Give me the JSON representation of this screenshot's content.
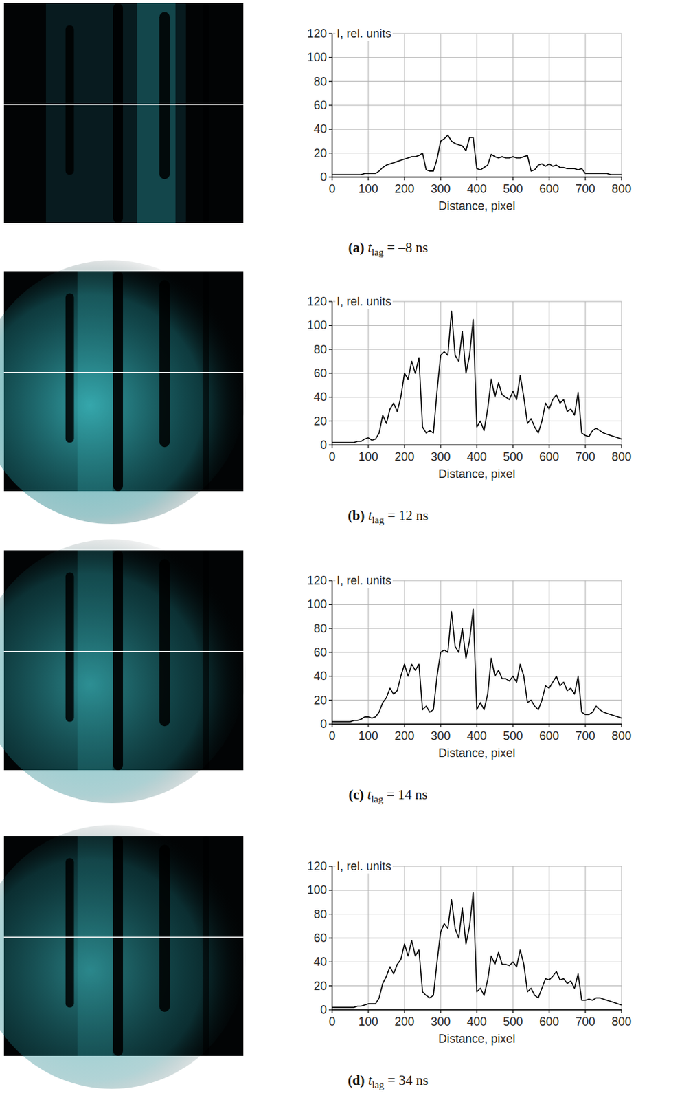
{
  "chart_data": [
    {
      "type": "line",
      "title": "(a) tlag = –8 ns",
      "x_label": "Distance, pixel",
      "y_label": "I, rel. units",
      "x": [
        0,
        10,
        20,
        30,
        40,
        50,
        60,
        70,
        80,
        90,
        100,
        110,
        120,
        130,
        140,
        150,
        160,
        170,
        180,
        190,
        200,
        210,
        220,
        230,
        240,
        250,
        260,
        270,
        280,
        290,
        300,
        310,
        320,
        330,
        340,
        350,
        360,
        370,
        380,
        390,
        400,
        410,
        420,
        430,
        440,
        450,
        460,
        470,
        480,
        490,
        500,
        510,
        520,
        530,
        540,
        550,
        560,
        570,
        580,
        590,
        600,
        610,
        620,
        630,
        640,
        650,
        660,
        670,
        680,
        690,
        700,
        710,
        720,
        730,
        740,
        750,
        760,
        770,
        780,
        790,
        800
      ],
      "values": [
        2,
        2,
        2,
        2,
        2,
        2,
        2,
        2,
        2,
        3,
        3,
        3,
        3,
        5,
        8,
        10,
        11,
        12,
        13,
        14,
        15,
        16,
        17,
        17,
        18,
        20,
        6,
        5,
        5,
        15,
        30,
        32,
        35,
        30,
        28,
        27,
        26,
        22,
        33,
        33,
        7,
        6,
        8,
        10,
        19,
        17,
        16,
        17,
        16,
        16,
        17,
        16,
        16,
        17,
        18,
        5,
        6,
        10,
        11,
        9,
        11,
        9,
        10,
        8,
        8,
        7,
        7,
        7,
        6,
        7,
        3,
        3,
        3,
        3,
        3,
        3,
        3,
        2,
        2,
        2,
        2
      ],
      "color": "#000000",
      "xlim": [
        0,
        800
      ],
      "xticks": [
        0,
        100,
        200,
        300,
        400,
        500,
        600,
        700,
        800
      ],
      "ylim": [
        0,
        120
      ],
      "yticks": [
        0,
        20,
        40,
        60,
        80,
        100,
        120
      ],
      "grid": true
    },
    {
      "type": "line",
      "title": "(b) tlag = 12 ns",
      "x_label": "Distance, pixel",
      "y_label": "I, rel. units",
      "x": [
        0,
        10,
        20,
        30,
        40,
        50,
        60,
        70,
        80,
        90,
        100,
        110,
        120,
        130,
        140,
        150,
        160,
        170,
        180,
        190,
        200,
        210,
        220,
        230,
        240,
        250,
        260,
        270,
        280,
        290,
        300,
        310,
        320,
        330,
        340,
        350,
        360,
        370,
        380,
        390,
        400,
        410,
        420,
        430,
        440,
        450,
        460,
        470,
        480,
        490,
        500,
        510,
        520,
        530,
        540,
        550,
        560,
        570,
        580,
        590,
        600,
        610,
        620,
        630,
        640,
        650,
        660,
        670,
        680,
        690,
        700,
        710,
        720,
        730,
        740,
        750,
        760,
        770,
        780,
        790,
        800
      ],
      "values": [
        2,
        2,
        2,
        2,
        2,
        2,
        2,
        3,
        3,
        5,
        6,
        4,
        5,
        10,
        25,
        18,
        30,
        35,
        28,
        40,
        60,
        55,
        70,
        60,
        73,
        15,
        10,
        12,
        10,
        45,
        75,
        78,
        75,
        112,
        75,
        70,
        95,
        60,
        75,
        105,
        15,
        20,
        12,
        30,
        55,
        40,
        52,
        42,
        40,
        38,
        45,
        38,
        58,
        40,
        18,
        22,
        15,
        10,
        20,
        35,
        30,
        38,
        42,
        35,
        38,
        28,
        30,
        25,
        44,
        10,
        8,
        7,
        12,
        14,
        12,
        10,
        9,
        8,
        7,
        6,
        5
      ],
      "color": "#000000",
      "xlim": [
        0,
        800
      ],
      "xticks": [
        0,
        100,
        200,
        300,
        400,
        500,
        600,
        700,
        800
      ],
      "ylim": [
        0,
        120
      ],
      "yticks": [
        0,
        20,
        40,
        60,
        80,
        100,
        120
      ],
      "grid": true
    },
    {
      "type": "line",
      "title": "(c) tlag = 14 ns",
      "x_label": "Distance, pixel",
      "y_label": "I, rel. units",
      "x": [
        0,
        10,
        20,
        30,
        40,
        50,
        60,
        70,
        80,
        90,
        100,
        110,
        120,
        130,
        140,
        150,
        160,
        170,
        180,
        190,
        200,
        210,
        220,
        230,
        240,
        250,
        260,
        270,
        280,
        290,
        300,
        310,
        320,
        330,
        340,
        350,
        360,
        370,
        380,
        390,
        400,
        410,
        420,
        430,
        440,
        450,
        460,
        470,
        480,
        490,
        500,
        510,
        520,
        530,
        540,
        550,
        560,
        570,
        580,
        590,
        600,
        610,
        620,
        630,
        640,
        650,
        660,
        670,
        680,
        690,
        700,
        710,
        720,
        730,
        740,
        750,
        760,
        770,
        780,
        790,
        800
      ],
      "values": [
        2,
        2,
        2,
        2,
        2,
        2,
        3,
        3,
        4,
        6,
        6,
        5,
        6,
        10,
        18,
        22,
        30,
        25,
        28,
        40,
        50,
        40,
        50,
        45,
        50,
        12,
        15,
        10,
        12,
        40,
        60,
        62,
        60,
        94,
        65,
        60,
        80,
        55,
        70,
        96,
        12,
        18,
        12,
        25,
        55,
        40,
        45,
        38,
        38,
        36,
        40,
        35,
        50,
        40,
        18,
        20,
        15,
        12,
        20,
        32,
        30,
        35,
        40,
        32,
        35,
        28,
        30,
        25,
        40,
        10,
        8,
        8,
        10,
        15,
        12,
        10,
        9,
        8,
        7,
        6,
        5
      ],
      "color": "#000000",
      "xlim": [
        0,
        800
      ],
      "xticks": [
        0,
        100,
        200,
        300,
        400,
        500,
        600,
        700,
        800
      ],
      "ylim": [
        0,
        120
      ],
      "yticks": [
        0,
        20,
        40,
        60,
        80,
        100,
        120
      ],
      "grid": true
    },
    {
      "type": "line",
      "title": "(d) tlag = 34 ns",
      "x_label": "Distance, pixel",
      "y_label": "I, rel. units",
      "x": [
        0,
        10,
        20,
        30,
        40,
        50,
        60,
        70,
        80,
        90,
        100,
        110,
        120,
        130,
        140,
        150,
        160,
        170,
        180,
        190,
        200,
        210,
        220,
        230,
        240,
        250,
        260,
        270,
        280,
        290,
        300,
        310,
        320,
        330,
        340,
        350,
        360,
        370,
        380,
        390,
        400,
        410,
        420,
        430,
        440,
        450,
        460,
        470,
        480,
        490,
        500,
        510,
        520,
        530,
        540,
        550,
        560,
        570,
        580,
        590,
        600,
        610,
        620,
        630,
        640,
        650,
        660,
        670,
        680,
        690,
        700,
        710,
        720,
        730,
        740,
        750,
        760,
        770,
        780,
        790,
        800
      ],
      "values": [
        2,
        2,
        2,
        2,
        2,
        2,
        2,
        3,
        3,
        4,
        5,
        5,
        5,
        10,
        22,
        28,
        36,
        30,
        38,
        42,
        55,
        45,
        58,
        45,
        50,
        15,
        12,
        10,
        12,
        40,
        65,
        72,
        68,
        92,
        68,
        60,
        85,
        55,
        70,
        98,
        15,
        18,
        12,
        25,
        45,
        38,
        48,
        38,
        38,
        37,
        40,
        36,
        50,
        38,
        15,
        18,
        12,
        10,
        18,
        26,
        25,
        28,
        32,
        25,
        26,
        22,
        24,
        18,
        30,
        8,
        8,
        9,
        8,
        10,
        10,
        9,
        8,
        7,
        6,
        5,
        4
      ],
      "color": "#000000",
      "xlim": [
        0,
        800
      ],
      "xticks": [
        0,
        100,
        200,
        300,
        400,
        500,
        600,
        700,
        800
      ],
      "ylim": [
        0,
        120
      ],
      "yticks": [
        0,
        20,
        40,
        60,
        80,
        100,
        120
      ],
      "grid": true
    }
  ]
}
